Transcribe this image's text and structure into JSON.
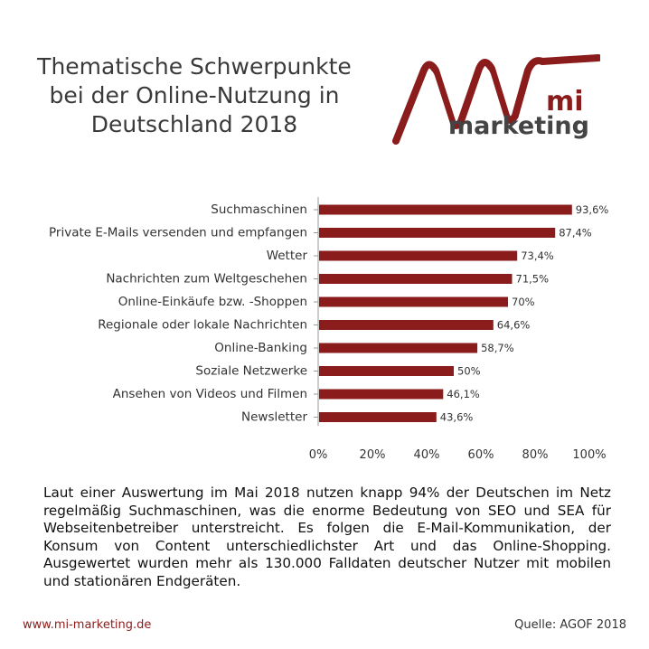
{
  "title_lines": [
    "Thematische Schwerpunkte",
    "bei der Online-Nutzung in",
    "Deutschland 2018"
  ],
  "logo": {
    "mark": "mi",
    "word": "marketing",
    "icon": "mi-logo-swoosh-icon"
  },
  "colors": {
    "bar": "#8b1c1c",
    "logo_red": "#8b1c1c",
    "logo_gray": "#444444",
    "url": "#8b1c1c"
  },
  "chart_data": {
    "type": "bar",
    "orientation": "horizontal",
    "categories": [
      "Suchmaschinen",
      "Private E-Mails versenden und empfangen",
      "Wetter",
      "Nachrichten zum Weltgeschehen",
      "Online-Einkäufe bzw. -Shoppen",
      "Regionale oder lokale Nachrichten",
      "Online-Banking",
      "Soziale Netzwerke",
      "Ansehen von Videos und Filmen",
      "Newsletter"
    ],
    "values": [
      93.6,
      87.4,
      73.4,
      71.5,
      70,
      64.6,
      58.7,
      50,
      46.1,
      43.6
    ],
    "value_labels": [
      "93,6%",
      "87,4%",
      "73,4%",
      "71,5%",
      "70%",
      "64,6%",
      "58,7%",
      "50%",
      "46,1%",
      "43,6%"
    ],
    "xlim": [
      0,
      100
    ],
    "xticks": [
      "0%",
      "20%",
      "40%",
      "60%",
      "80%",
      "100%"
    ],
    "grid": false,
    "legend": "none"
  },
  "description": "Laut einer Auswertung im Mai 2018 nutzen knapp 94% der Deutschen im Netz regelmäßig Suchmaschinen, was die enorme Bedeutung von SEO und SEA für Webseitenbetreiber unterstreicht. Es folgen die E-Mail-Kommunikation, der Konsum von Content unterschiedlichster Art und das Online-Shopping. Ausgewertet wurden mehr als 130.000 Falldaten deutscher Nutzer mit mobilen und stationären Endgeräten.",
  "footer": {
    "url": "www.mi-marketing.de",
    "source": "Quelle: AGOF 2018"
  }
}
